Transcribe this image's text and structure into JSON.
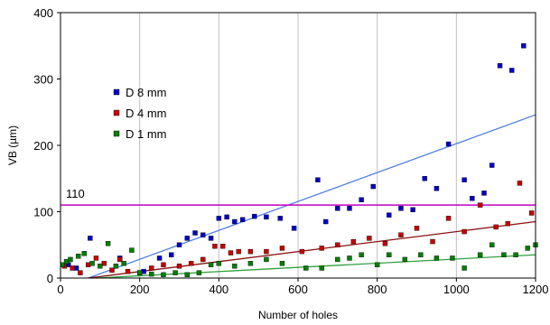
{
  "chart_data": {
    "type": "scatter",
    "title": "",
    "xlabel": "Number of holes",
    "ylabel": "VB (µm)",
    "xlim": [
      0,
      1200
    ],
    "ylim": [
      0,
      400
    ],
    "x_ticks": [
      0,
      200,
      400,
      600,
      800,
      1000,
      1200
    ],
    "y_ticks": [
      0,
      100,
      200,
      300,
      400
    ],
    "grid": "vertical",
    "legend_position": "left-center",
    "reference_line": {
      "value": 110,
      "label": "110",
      "color": "#c000c0"
    },
    "series": [
      {
        "name": "D 8 mm",
        "color": "#0000cc",
        "trend": [
          [
            70,
            0
          ],
          [
            1200,
            246
          ]
        ],
        "trend_color": "#4f7fe6",
        "points": [
          [
            20,
            20
          ],
          [
            40,
            15
          ],
          [
            75,
            60
          ],
          [
            150,
            30
          ],
          [
            210,
            10
          ],
          [
            250,
            30
          ],
          [
            280,
            35
          ],
          [
            300,
            50
          ],
          [
            320,
            60
          ],
          [
            340,
            68
          ],
          [
            360,
            65
          ],
          [
            380,
            60
          ],
          [
            400,
            90
          ],
          [
            420,
            92
          ],
          [
            440,
            85
          ],
          [
            460,
            88
          ],
          [
            490,
            93
          ],
          [
            520,
            92
          ],
          [
            555,
            90
          ],
          [
            590,
            75
          ],
          [
            650,
            148
          ],
          [
            670,
            85
          ],
          [
            700,
            105
          ],
          [
            730,
            105
          ],
          [
            760,
            118
          ],
          [
            790,
            138
          ],
          [
            830,
            95
          ],
          [
            860,
            105
          ],
          [
            890,
            103
          ],
          [
            920,
            150
          ],
          [
            950,
            135
          ],
          [
            980,
            202
          ],
          [
            1020,
            148
          ],
          [
            1040,
            120
          ],
          [
            1070,
            128
          ],
          [
            1090,
            170
          ],
          [
            1110,
            320
          ],
          [
            1140,
            313
          ],
          [
            1170,
            350
          ]
        ]
      },
      {
        "name": "D 4 mm",
        "color": "#cc0000",
        "trend": [
          [
            70,
            0
          ],
          [
            1200,
            85
          ]
        ],
        "trend_color": "#8a1010",
        "points": [
          [
            10,
            18
          ],
          [
            30,
            15
          ],
          [
            50,
            8
          ],
          [
            70,
            20
          ],
          [
            90,
            30
          ],
          [
            110,
            22
          ],
          [
            130,
            12
          ],
          [
            150,
            28
          ],
          [
            170,
            10
          ],
          [
            200,
            8
          ],
          [
            230,
            15
          ],
          [
            260,
            20
          ],
          [
            300,
            18
          ],
          [
            330,
            22
          ],
          [
            360,
            28
          ],
          [
            390,
            48
          ],
          [
            410,
            48
          ],
          [
            430,
            38
          ],
          [
            450,
            40
          ],
          [
            480,
            40
          ],
          [
            520,
            40
          ],
          [
            560,
            45
          ],
          [
            610,
            40
          ],
          [
            660,
            45
          ],
          [
            700,
            50
          ],
          [
            740,
            55
          ],
          [
            780,
            60
          ],
          [
            820,
            52
          ],
          [
            860,
            65
          ],
          [
            900,
            75
          ],
          [
            940,
            55
          ],
          [
            980,
            90
          ],
          [
            1020,
            70
          ],
          [
            1060,
            110
          ],
          [
            1100,
            77
          ],
          [
            1130,
            82
          ],
          [
            1160,
            143
          ],
          [
            1190,
            98
          ]
        ]
      },
      {
        "name": "D 1 mm",
        "color": "#008000",
        "trend": [
          [
            90,
            0
          ],
          [
            1200,
            35
          ]
        ],
        "trend_color": "#30a040",
        "points": [
          [
            5,
            20
          ],
          [
            15,
            25
          ],
          [
            25,
            28
          ],
          [
            45,
            33
          ],
          [
            60,
            37
          ],
          [
            80,
            22
          ],
          [
            100,
            18
          ],
          [
            120,
            52
          ],
          [
            140,
            18
          ],
          [
            160,
            22
          ],
          [
            180,
            42
          ],
          [
            200,
            8
          ],
          [
            230,
            6
          ],
          [
            260,
            5
          ],
          [
            290,
            8
          ],
          [
            320,
            5
          ],
          [
            350,
            8
          ],
          [
            380,
            20
          ],
          [
            400,
            22
          ],
          [
            440,
            18
          ],
          [
            480,
            22
          ],
          [
            520,
            28
          ],
          [
            560,
            22
          ],
          [
            620,
            15
          ],
          [
            660,
            15
          ],
          [
            700,
            28
          ],
          [
            730,
            30
          ],
          [
            760,
            35
          ],
          [
            800,
            20
          ],
          [
            830,
            35
          ],
          [
            870,
            28
          ],
          [
            910,
            35
          ],
          [
            950,
            30
          ],
          [
            990,
            30
          ],
          [
            1020,
            15
          ],
          [
            1060,
            35
          ],
          [
            1090,
            50
          ],
          [
            1120,
            35
          ],
          [
            1150,
            35
          ],
          [
            1180,
            45
          ],
          [
            1200,
            50
          ]
        ]
      }
    ]
  }
}
